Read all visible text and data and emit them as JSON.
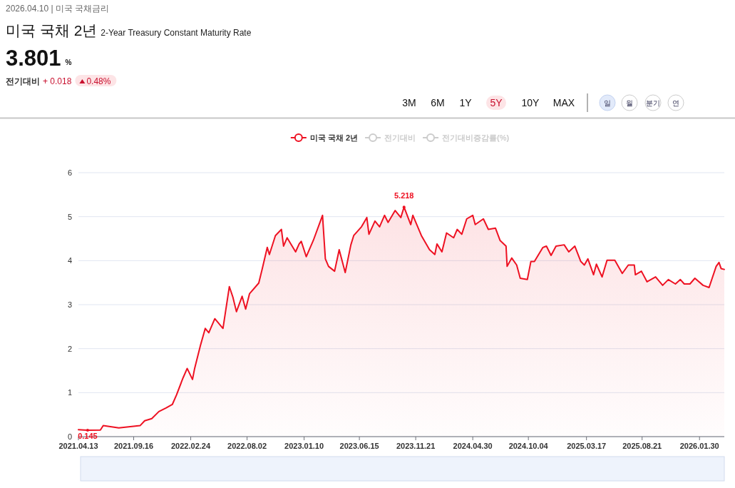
{
  "chart_data": {
    "type": "area",
    "title": "미국 국채 2년",
    "subtitle": "2-Year Treasury Constant Maturity Rate",
    "annotations": [
      "2026.04.10 | 미국 국채금리",
      "3.801",
      "%",
      "전기대비",
      "+ 0.018",
      "0.48%",
      "3M",
      "6M",
      "1Y",
      "5Y",
      "10Y",
      "MAX",
      "일",
      "월",
      "분기",
      "연",
      "전기대비",
      "전기대비증감률(%)",
      {
        "text": "5.218",
        "x": "2023-10-19",
        "y": 5.218
      },
      {
        "text": "0.145",
        "x": "2021-05-09",
        "y": 0.145
      }
    ],
    "xlim": [
      "2021-04-13",
      "2026-04-10"
    ],
    "xticks": [
      {
        "value": "2021-04-13",
        "label": "2021.04.13"
      },
      {
        "value": "2021-09-16",
        "label": "2021.09.16"
      },
      {
        "value": "2022-02-24",
        "label": "2022.02.24"
      },
      {
        "value": "2022-08-02",
        "label": "2022.08.02"
      },
      {
        "value": "2023-01-10",
        "label": "2023.01.10"
      },
      {
        "value": "2023-06-15",
        "label": "2023.06.15"
      },
      {
        "value": "2023-11-21",
        "label": "2023.11.21"
      },
      {
        "value": "2024-04-30",
        "label": "2024.04.30"
      },
      {
        "value": "2024-10-04",
        "label": "2024.10.04"
      },
      {
        "value": "2025-03-17",
        "label": "2025.03.17"
      },
      {
        "value": "2025-08-21",
        "label": "2025.08.21"
      },
      {
        "value": "2026-01-30",
        "label": "2026.01.30"
      }
    ],
    "ylim": [
      0,
      6
    ],
    "yticks": [
      0,
      1,
      2,
      3,
      4,
      5,
      6
    ],
    "grid": "y",
    "legend": "top",
    "series": [
      {
        "name": "미국 국채 2년",
        "color": "#ee1122",
        "x": [
          "2021-04-13",
          "2021-04-29",
          "2021-05-09",
          "2021-06-14",
          "2021-06-22",
          "2021-08-05",
          "2021-10-04",
          "2021-10-17",
          "2021-11-06",
          "2021-11-26",
          "2021-12-16",
          "2022-01-03",
          "2022-01-15",
          "2022-02-02",
          "2022-02-14",
          "2022-03-01",
          "2022-03-07",
          "2022-03-24",
          "2022-04-06",
          "2022-04-16",
          "2022-05-03",
          "2022-05-26",
          "2022-06-13",
          "2022-06-23",
          "2022-07-03",
          "2022-07-19",
          "2022-07-29",
          "2022-08-09",
          "2022-09-04",
          "2022-09-14",
          "2022-09-28",
          "2022-10-04",
          "2022-10-21",
          "2022-11-07",
          "2022-11-13",
          "2022-11-23",
          "2022-12-17",
          "2022-12-27",
          "2023-01-02",
          "2023-01-16",
          "2023-02-05",
          "2023-03-03",
          "2023-03-11",
          "2023-03-20",
          "2023-04-06",
          "2023-04-19",
          "2023-05-06",
          "2023-05-22",
          "2023-05-30",
          "2023-06-21",
          "2023-07-06",
          "2023-07-12",
          "2023-07-29",
          "2023-08-11",
          "2023-08-25",
          "2023-09-04",
          "2023-09-24",
          "2023-10-10",
          "2023-10-19",
          "2023-11-07",
          "2023-11-13",
          "2023-12-07",
          "2023-12-30",
          "2024-01-14",
          "2024-01-20",
          "2024-02-03",
          "2024-02-16",
          "2024-03-07",
          "2024-03-17",
          "2024-03-30",
          "2024-04-13",
          "2024-04-30",
          "2024-05-07",
          "2024-05-30",
          "2024-06-13",
          "2024-07-03",
          "2024-07-16",
          "2024-08-02",
          "2024-08-05",
          "2024-08-18",
          "2024-09-01",
          "2024-09-11",
          "2024-10-01",
          "2024-10-11",
          "2024-10-21",
          "2024-11-14",
          "2024-11-24",
          "2024-12-07",
          "2024-12-21",
          "2025-01-13",
          "2025-01-26",
          "2025-02-12",
          "2025-03-01",
          "2025-03-11",
          "2025-03-21",
          "2025-04-06",
          "2025-04-14",
          "2025-04-30",
          "2025-05-14",
          "2025-06-05",
          "2025-06-26",
          "2025-07-13",
          "2025-07-30",
          "2025-08-02",
          "2025-08-19",
          "2025-09-04",
          "2025-09-28",
          "2025-10-18",
          "2025-11-03",
          "2025-11-23",
          "2025-12-07",
          "2025-12-18",
          "2026-01-03",
          "2026-01-17",
          "2026-02-09",
          "2026-02-26",
          "2026-03-18",
          "2026-03-26",
          "2026-04-01",
          "2026-04-10"
        ],
        "values": [
          0.16,
          0.15,
          0.145,
          0.15,
          0.25,
          0.2,
          0.25,
          0.36,
          0.41,
          0.57,
          0.65,
          0.73,
          0.95,
          1.33,
          1.55,
          1.3,
          1.55,
          2.09,
          2.46,
          2.36,
          2.68,
          2.46,
          3.41,
          3.17,
          2.84,
          3.19,
          2.9,
          3.25,
          3.49,
          3.82,
          4.3,
          4.14,
          4.57,
          4.71,
          4.33,
          4.52,
          4.2,
          4.38,
          4.44,
          4.09,
          4.46,
          5.03,
          4.04,
          3.87,
          3.76,
          4.25,
          3.73,
          4.36,
          4.57,
          4.77,
          4.98,
          4.6,
          4.9,
          4.77,
          5.03,
          4.87,
          5.14,
          4.98,
          5.218,
          4.82,
          5.03,
          4.57,
          4.25,
          4.14,
          4.38,
          4.2,
          4.63,
          4.52,
          4.71,
          4.6,
          4.95,
          5.03,
          4.82,
          4.95,
          4.71,
          4.74,
          4.46,
          4.33,
          3.87,
          4.06,
          3.9,
          3.6,
          3.57,
          3.98,
          3.98,
          4.3,
          4.33,
          4.12,
          4.33,
          4.36,
          4.2,
          4.33,
          3.98,
          3.9,
          4.04,
          3.68,
          3.92,
          3.63,
          4.01,
          4.01,
          3.71,
          3.9,
          3.9,
          3.68,
          3.76,
          3.52,
          3.63,
          3.44,
          3.57,
          3.47,
          3.57,
          3.47,
          3.47,
          3.6,
          3.44,
          3.39,
          3.87,
          3.96,
          3.82,
          3.801
        ]
      }
    ]
  }
}
